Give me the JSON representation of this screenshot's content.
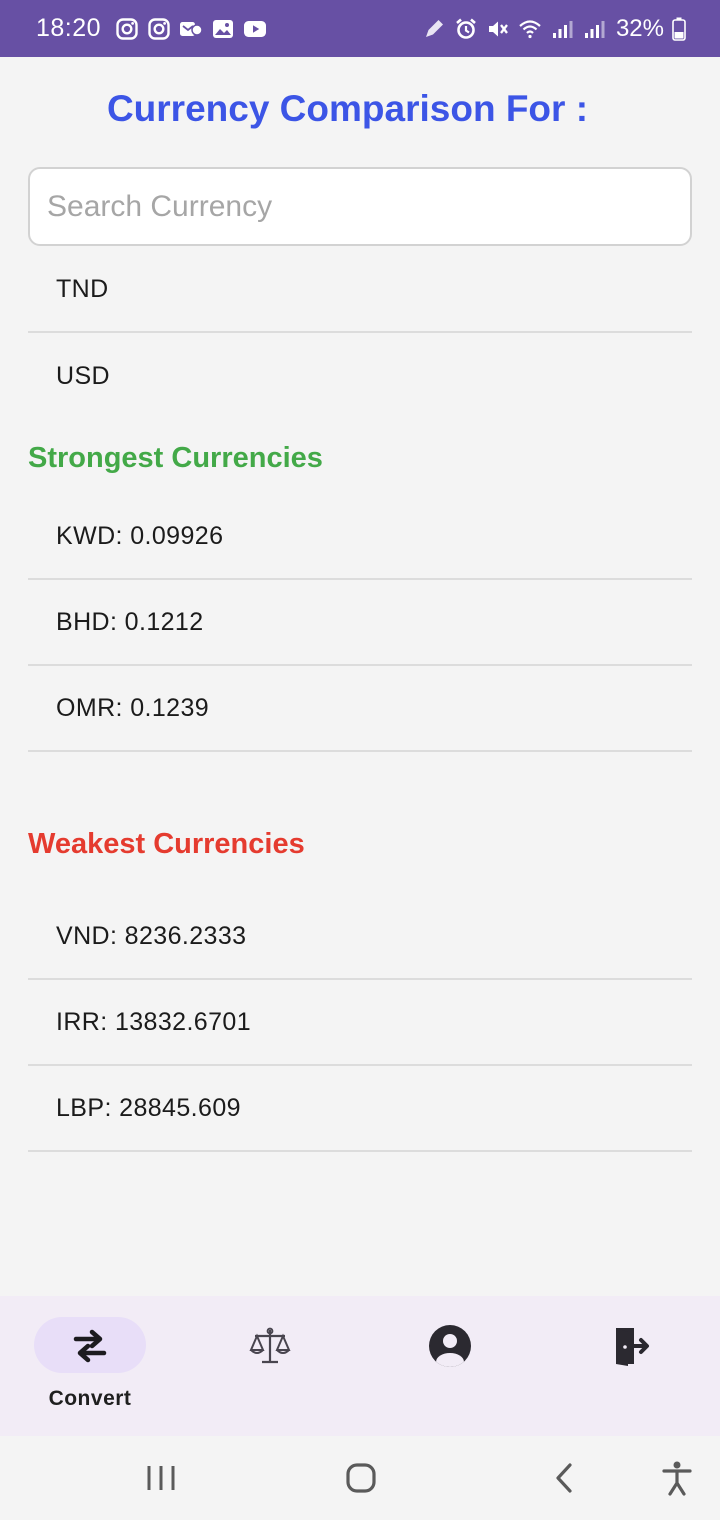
{
  "status_bar": {
    "time": "18:20",
    "battery": "32%",
    "background": "#6750a4",
    "left_icons": [
      "instagram-icon",
      "instagram-icon",
      "messenger-icon",
      "gallery-icon",
      "youtube-icon"
    ],
    "right_icons": [
      "pen-icon",
      "alarm-icon",
      "mute-icon",
      "wifi-icon",
      "signal-icon",
      "signal-icon",
      "battery-icon"
    ]
  },
  "title": "Currency Comparison For :",
  "search": {
    "placeholder": "Search Currency",
    "value": ""
  },
  "selected_currencies": [
    "TND",
    "USD"
  ],
  "strongest": {
    "title": "Strongest Currencies",
    "color": "#43a948",
    "items": [
      "KWD: 0.09926",
      "BHD: 0.1212",
      "OMR: 0.1239"
    ]
  },
  "weakest": {
    "title": "Weakest Currencies",
    "color": "#e53b2f",
    "items": [
      "VND: 8236.2333",
      "IRR: 13832.6701",
      "LBP: 28845.609"
    ]
  },
  "bottom_nav": {
    "items": [
      {
        "icon": "swap-arrows-icon",
        "label": "Convert",
        "active": true
      },
      {
        "icon": "scale-icon",
        "label": "",
        "active": false
      },
      {
        "icon": "account-circle-icon",
        "label": "",
        "active": false
      },
      {
        "icon": "logout-icon",
        "label": "",
        "active": false
      }
    ],
    "active_color": "#e8def8",
    "background": "#f2ecf6"
  },
  "system_nav": [
    "recents-icon",
    "home-icon",
    "back-icon",
    "accessibility-icon"
  ]
}
